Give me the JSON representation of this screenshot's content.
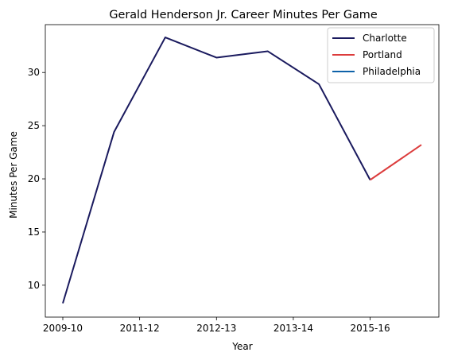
{
  "chart_data": {
    "type": "line",
    "title": "Gerald Henderson Jr. Career Minutes Per Game",
    "xlabel": "Year",
    "ylabel": "Minutes Per Game",
    "x_tick_labels": [
      "2009-10",
      "2011-12",
      "2012-13",
      "2013-14",
      "2015-16"
    ],
    "y_ticks": [
      10,
      15,
      20,
      25,
      30
    ],
    "ylim": [
      7.0,
      34.5
    ],
    "grid": false,
    "legend_position": "top-right",
    "series": [
      {
        "name": "Charlotte",
        "color": "#1a1a5e",
        "points": [
          {
            "x": 0,
            "y": 8.3
          },
          {
            "x": 1,
            "y": 24.4
          },
          {
            "x": 2,
            "y": 33.3
          },
          {
            "x": 3,
            "y": 31.4
          },
          {
            "x": 4,
            "y": 32.0
          },
          {
            "x": 5,
            "y": 28.9
          },
          {
            "x": 6,
            "y": 19.9
          }
        ]
      },
      {
        "name": "Portland",
        "color": "#dc3c3c",
        "points": [
          {
            "x": 6,
            "y": 19.9
          },
          {
            "x": 7,
            "y": 23.2
          }
        ]
      },
      {
        "name": "Philadelphia",
        "color": "#0e62a9",
        "points": []
      }
    ]
  }
}
